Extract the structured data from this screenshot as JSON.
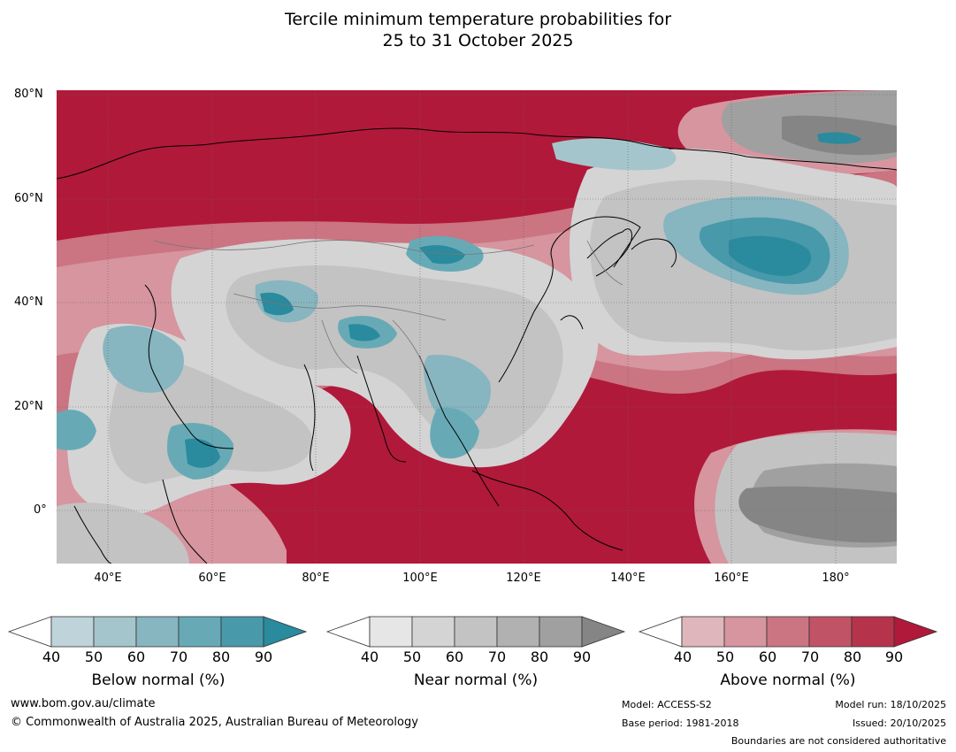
{
  "title": {
    "line1": "Tercile minimum temperature probabilities for",
    "line2": "25 to 31 October 2025"
  },
  "axes": {
    "lat_labels": [
      "80°N",
      "60°N",
      "40°N",
      "20°N",
      "0°"
    ],
    "lon_labels": [
      "40°E",
      "60°E",
      "80°E",
      "100°E",
      "120°E",
      "140°E",
      "160°E",
      "180°"
    ]
  },
  "legends": {
    "below": {
      "title": "Below normal (%)",
      "ticks": [
        "40",
        "50",
        "60",
        "70",
        "80",
        "90"
      ],
      "colors": [
        "#bfd3da",
        "#a5c5cc",
        "#87b5c0",
        "#67aab6",
        "#4899aa",
        "#2a8a9e"
      ]
    },
    "near": {
      "title": "Near normal (%)",
      "ticks": [
        "40",
        "50",
        "60",
        "70",
        "80",
        "90"
      ],
      "colors": [
        "#e6e6e6",
        "#d4d4d4",
        "#c3c3c3",
        "#b1b1b1",
        "#a0a0a0",
        "#858585"
      ]
    },
    "above": {
      "title": "Above normal (%)",
      "ticks": [
        "40",
        "50",
        "60",
        "70",
        "80",
        "90"
      ],
      "colors": [
        "#e0b6bd",
        "#d6959f",
        "#cb7482",
        "#c05466",
        "#b6344b",
        "#b0193a"
      ]
    }
  },
  "footer": {
    "website": "www.bom.gov.au/climate",
    "copyright": "© Commonwealth of Australia 2025, Australian Bureau of Meteorology",
    "model": "Model: ACCESS-S2",
    "base_period": "Base period: 1981-2018",
    "model_run": "Model run: 18/10/2025",
    "issued": "Issued: 20/10/2025",
    "disclaimer": "Boundaries are not considered authoritative"
  }
}
